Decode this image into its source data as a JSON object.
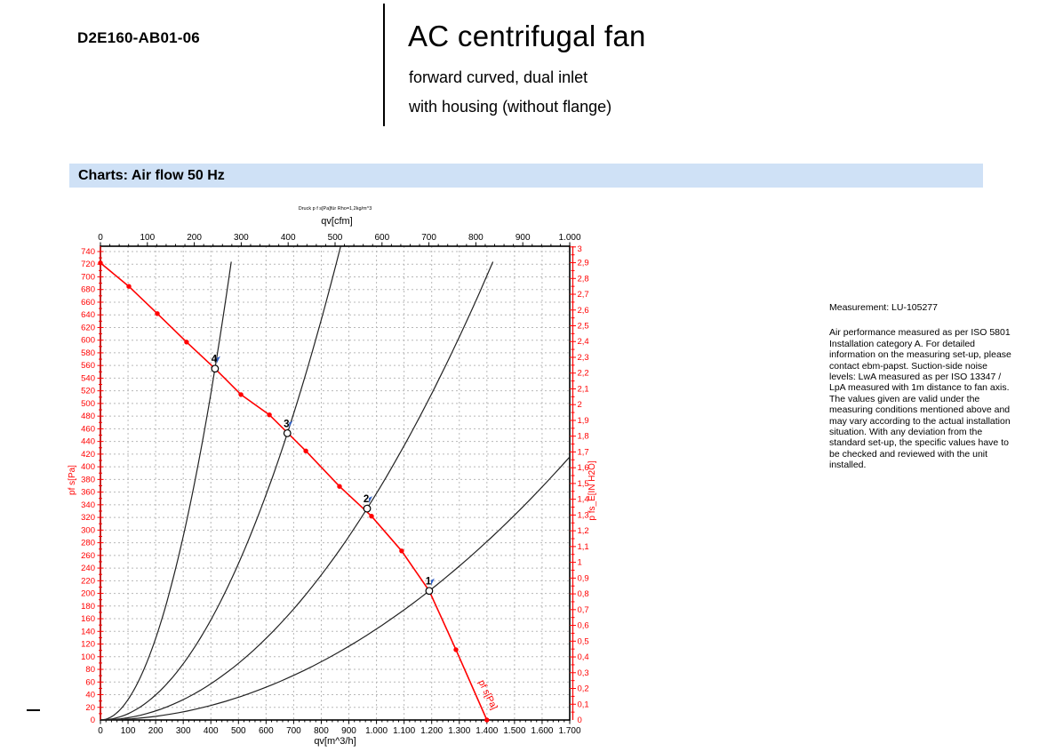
{
  "header": {
    "model": "D2E160-AB01-06",
    "title": "AC centrifugal fan",
    "subtitle_line1": "forward curved, dual inlet",
    "subtitle_line2": "with housing (without flange)"
  },
  "section": {
    "label": "Charts: Air flow 50 Hz",
    "bg_color": "#cfe1f6"
  },
  "notes": {
    "measurement": "Measurement: LU-105277",
    "body": "Air performance measured as per ISO 5801 Installation category A. For detailed information on the measuring set-up, please contact ebm-papst. Suction-side noise levels: LwA measured as per ISO 13347 / LpA measured with 1m distance to fan axis. The values given are valid under the measuring conditions mentioned above and may vary according to the actual installation situation. With any deviation from the standard set-up, the specific values have to be checked and reviewed with the unit installed."
  },
  "chart_data": {
    "type": "line",
    "title": "Druck p f s[Pa]für Rho=1,2kg/m^3",
    "axes": {
      "top": {
        "label": "qv[cfm]",
        "min": 0,
        "max": 1000,
        "tick_step": 100,
        "tick_labels": [
          "0",
          "100",
          "200",
          "300",
          "400",
          "500",
          "600",
          "700",
          "800",
          "900",
          "1.000"
        ]
      },
      "bottom": {
        "label": "qv[m^3/h]",
        "min": 0,
        "max": 1700,
        "tick_step": 100,
        "tick_labels": [
          "0",
          "100",
          "200",
          "300",
          "400",
          "500",
          "600",
          "700",
          "800",
          "900",
          "1.000",
          "1.100",
          "1.200",
          "1.300",
          "1.400",
          "1.500",
          "1.600",
          "1.700"
        ]
      },
      "left": {
        "label": "pf s[Pa]",
        "min": 0,
        "max": 740,
        "tick_step": 20,
        "color": "#ff0000",
        "tick_labels": [
          "0",
          "20",
          "40",
          "60",
          "80",
          "100",
          "120",
          "140",
          "160",
          "180",
          "200",
          "220",
          "240",
          "260",
          "280",
          "300",
          "320",
          "340",
          "360",
          "380",
          "400",
          "420",
          "440",
          "460",
          "480",
          "500",
          "520",
          "540",
          "560",
          "580",
          "600",
          "620",
          "640",
          "660",
          "680",
          "700",
          "720",
          "740"
        ]
      },
      "right": {
        "label": "p fs_E[IN H2O]",
        "min": 0,
        "max": 3,
        "tick_step": 0.1,
        "color": "#ff0000",
        "pa_per_unit": 249.089,
        "tick_labels": [
          "0",
          "0,1",
          "0,2",
          "0,3",
          "0,4",
          "0,5",
          "0,6",
          "0,7",
          "0,8",
          "0,9",
          "1",
          "1,1",
          "1,2",
          "1,3",
          "1,4",
          "1,5",
          "1,6",
          "1,7",
          "1,8",
          "1,9",
          "2",
          "2,1",
          "2,2",
          "2,3",
          "2,4",
          "2,5",
          "2,6",
          "2,7",
          "2,8",
          "2,9",
          "3"
        ]
      }
    },
    "grid": {
      "x_step_m3h": 100,
      "y_step_pa": 20,
      "style": "dashed",
      "color": "#b8b8b8"
    },
    "series": [
      {
        "name": "fan-pressure-curve",
        "curve_label": "pf s[Pa]",
        "color": "#ff0000",
        "points_q_p": [
          [
            0,
            722
          ],
          [
            103,
            685
          ],
          [
            206,
            642
          ],
          [
            312,
            597
          ],
          [
            415,
            555
          ],
          [
            509,
            514
          ],
          [
            612,
            482
          ],
          [
            744,
            425
          ],
          [
            866,
            369
          ],
          [
            982,
            322
          ],
          [
            1091,
            267
          ],
          [
            1191,
            204
          ],
          [
            1288,
            111
          ],
          [
            1400,
            0
          ]
        ]
      }
    ],
    "system_curves": [
      {
        "label": "4",
        "k": 0.003223,
        "q_end": 482
      },
      {
        "label": "3",
        "k": 0.000988,
        "q_end": 870
      },
      {
        "label": "2",
        "k": 0.000358,
        "q_end": 1446
      },
      {
        "label": "1",
        "k": 0.0001438,
        "q_end": 1700
      }
    ],
    "operating_points": [
      {
        "label": "4",
        "q": 415,
        "p": 555
      },
      {
        "label": "3",
        "q": 677,
        "p": 453
      },
      {
        "label": "2",
        "q": 966,
        "p": 334
      },
      {
        "label": "1",
        "q": 1191,
        "p": 204
      }
    ],
    "colors": {
      "curve_red": "#ff0000",
      "system_black": "#222222",
      "grid": "#b8b8b8",
      "flag_blue": "#2f5fc4",
      "axis_black": "#000000"
    }
  }
}
